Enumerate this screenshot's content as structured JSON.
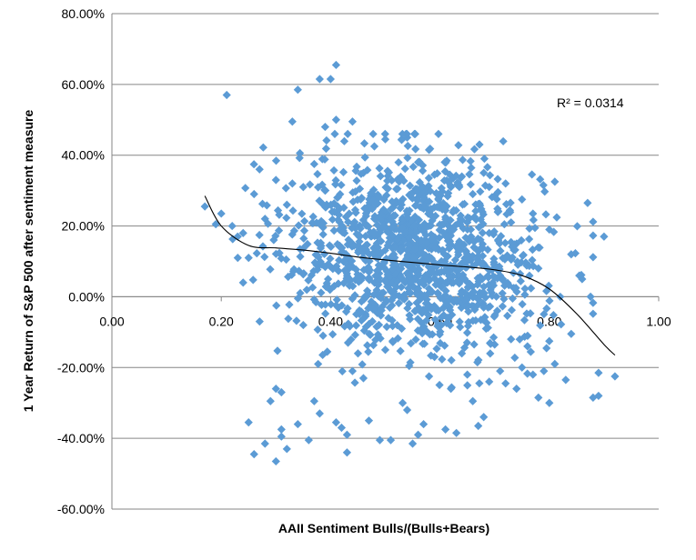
{
  "chart_data": {
    "type": "scatter",
    "xlabel": "AAII Sentiment Bulls/(Bulls+Bears)",
    "ylabel": "1 Year Return of S&P 500 after sentiment measure",
    "xlim": [
      0,
      1
    ],
    "ylim": [
      -60,
      80
    ],
    "x_ticks": [
      0,
      0.2,
      0.4,
      0.6,
      0.8,
      1.0
    ],
    "x_tick_labels": [
      "0.00",
      "0.20",
      "0.40",
      "0.60",
      "0.80",
      "1.00"
    ],
    "y_ticks": [
      -60,
      -40,
      -20,
      0,
      20,
      40,
      60,
      80
    ],
    "y_tick_labels": [
      "-60.00%",
      "-40.00%",
      "-20.00%",
      "0.00%",
      "20.00%",
      "40.00%",
      "60.00%",
      "80.00%"
    ],
    "grid": "horizontal",
    "annotation": "R² = 0.0314",
    "marker": "diamond",
    "point_color": "#5b9bd5",
    "trendline_color": "#000000",
    "series": [
      {
        "points": [
          [
            0.17,
            25.5
          ],
          [
            0.19,
            20.5
          ],
          [
            0.2,
            23.5
          ],
          [
            0.21,
            57
          ],
          [
            0.22,
            20
          ],
          [
            0.23,
            17
          ],
          [
            0.24,
            4
          ],
          [
            0.24,
            18
          ],
          [
            0.25,
            11
          ],
          [
            0.25,
            -35.5
          ],
          [
            0.26,
            -44.5
          ],
          [
            0.26,
            29
          ],
          [
            0.27,
            36
          ],
          [
            0.28,
            -41.5
          ],
          [
            0.28,
            22
          ],
          [
            0.29,
            -29.5
          ],
          [
            0.3,
            -46.5
          ],
          [
            0.3,
            -26
          ],
          [
            0.3,
            33
          ],
          [
            0.31,
            -27
          ],
          [
            0.31,
            -37.5
          ],
          [
            0.31,
            -39.5
          ],
          [
            0.32,
            26
          ],
          [
            0.32,
            -43
          ],
          [
            0.33,
            49.5
          ],
          [
            0.33,
            32
          ],
          [
            0.34,
            58.5
          ],
          [
            0.34,
            -36
          ],
          [
            0.35,
            31
          ],
          [
            0.35,
            -8
          ],
          [
            0.36,
            -40.5
          ],
          [
            0.37,
            37.5
          ],
          [
            0.37,
            -29.5
          ],
          [
            0.38,
            -33
          ],
          [
            0.38,
            9
          ],
          [
            0.38,
            61.5
          ],
          [
            0.39,
            48
          ],
          [
            0.39,
            25.5
          ],
          [
            0.4,
            61.5
          ],
          [
            0.41,
            65.5
          ],
          [
            0.41,
            50
          ],
          [
            0.41,
            -35.5
          ],
          [
            0.42,
            -37
          ],
          [
            0.42,
            12.5
          ],
          [
            0.43,
            -39
          ],
          [
            0.43,
            -44
          ],
          [
            0.44,
            -21
          ],
          [
            0.44,
            49.5
          ],
          [
            0.45,
            -16
          ],
          [
            0.46,
            -23
          ],
          [
            0.46,
            35
          ],
          [
            0.47,
            -35
          ],
          [
            0.47,
            7
          ],
          [
            0.48,
            42.5
          ],
          [
            0.49,
            -40.5
          ],
          [
            0.49,
            22.5
          ],
          [
            0.5,
            -15
          ],
          [
            0.5,
            44.5
          ],
          [
            0.51,
            -40.5
          ],
          [
            0.52,
            27
          ],
          [
            0.53,
            44.5
          ],
          [
            0.53,
            -9
          ],
          [
            0.54,
            -32
          ],
          [
            0.54,
            45
          ],
          [
            0.55,
            -41.5
          ],
          [
            0.55,
            19
          ],
          [
            0.56,
            -39
          ],
          [
            0.56,
            38
          ],
          [
            0.57,
            -36
          ],
          [
            0.58,
            41.5
          ],
          [
            0.58,
            -22.5
          ],
          [
            0.59,
            -17
          ],
          [
            0.59,
            34.5
          ],
          [
            0.6,
            4
          ],
          [
            0.61,
            -37.5
          ],
          [
            0.61,
            22.5
          ],
          [
            0.62,
            -26
          ],
          [
            0.62,
            31
          ],
          [
            0.63,
            -38.5
          ],
          [
            0.63,
            14
          ],
          [
            0.64,
            34
          ],
          [
            0.64,
            -16
          ],
          [
            0.65,
            -22
          ],
          [
            0.65,
            21
          ],
          [
            0.66,
            29
          ],
          [
            0.66,
            -29.5
          ],
          [
            0.67,
            -36.5
          ],
          [
            0.67,
            11.5
          ],
          [
            0.68,
            -34
          ],
          [
            0.68,
            35
          ],
          [
            0.69,
            -24
          ],
          [
            0.69,
            18
          ],
          [
            0.7,
            -13.5
          ],
          [
            0.7,
            28.5
          ],
          [
            0.71,
            -21
          ],
          [
            0.71,
            6
          ],
          [
            0.72,
            32
          ],
          [
            0.72,
            -24.5
          ],
          [
            0.73,
            -12
          ],
          [
            0.73,
            21
          ],
          [
            0.74,
            -26
          ],
          [
            0.74,
            15
          ],
          [
            0.75,
            27.5
          ],
          [
            0.75,
            -20
          ],
          [
            0.76,
            -14
          ],
          [
            0.77,
            23.5
          ],
          [
            0.77,
            -22
          ],
          [
            0.78,
            -28.5
          ],
          [
            0.78,
            8
          ],
          [
            0.79,
            -21
          ],
          [
            0.8,
            19
          ],
          [
            0.8,
            -30
          ],
          [
            0.81,
            32.5
          ],
          [
            0.81,
            -19
          ],
          [
            0.82,
            0
          ],
          [
            0.83,
            -23.5
          ],
          [
            0.84,
            12
          ],
          [
            0.84,
            -10.5
          ],
          [
            0.86,
            5
          ],
          [
            0.87,
            26.5
          ],
          [
            0.88,
            -28.5
          ],
          [
            0.89,
            -28
          ],
          [
            0.89,
            -21.5
          ],
          [
            0.9,
            17
          ],
          [
            0.92,
            -22.5
          ]
        ],
        "cloud": {
          "count": 1250,
          "x_mean": 0.555,
          "x_sd": 0.115,
          "y_mean": 12,
          "y_sd": 13.5,
          "x_range": [
            0.19,
            0.88
          ],
          "y_range": [
            -30,
            46
          ]
        }
      }
    ],
    "trendline": {
      "x": [
        0.17,
        0.2,
        0.25,
        0.3,
        0.35,
        0.4,
        0.45,
        0.5,
        0.55,
        0.6,
        0.65,
        0.7,
        0.75,
        0.8,
        0.85,
        0.9,
        0.92
      ],
      "y": [
        28.5,
        20,
        14.5,
        13.8,
        13.2,
        12.3,
        11.2,
        10.4,
        9.7,
        9,
        8.4,
        7.6,
        6,
        2.2,
        -4.8,
        -13.5,
        -16.5
      ]
    }
  },
  "icons": {
    "marker": "diamond-marker"
  }
}
